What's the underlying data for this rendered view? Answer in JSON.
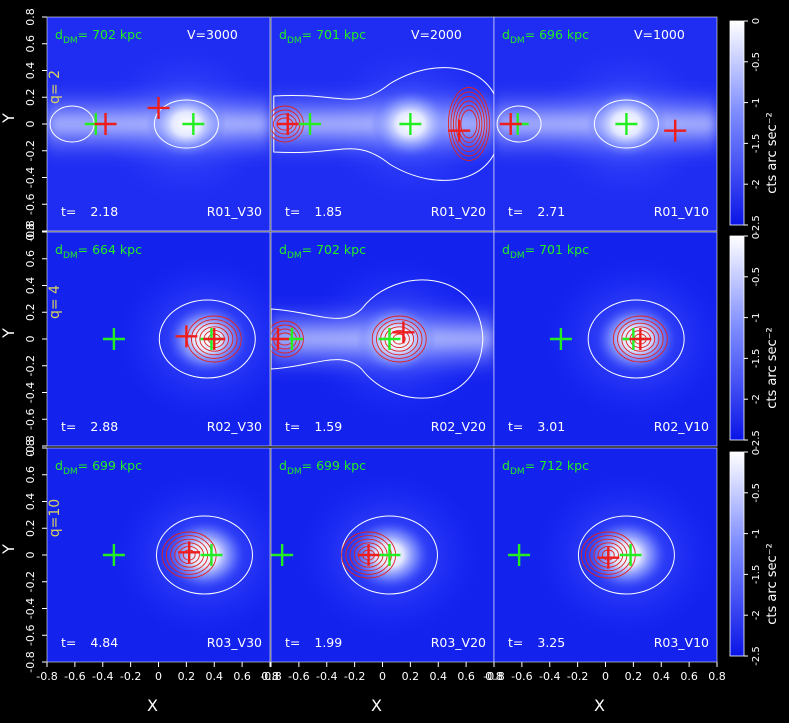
{
  "figure": {
    "y_axis_label": "Y",
    "x_axis_label": "X",
    "colorbar_label": "cts arc sec⁻²",
    "colorbar_ticks": [
      "0",
      "-0.5",
      "-1",
      "-1.5",
      "-2",
      "-2.5"
    ],
    "x_ticks": [
      "-0.8",
      "-0.6",
      "-0.4",
      "-0.2",
      "0",
      "0.2",
      "0.4",
      "0.6",
      "0.8"
    ],
    "y_ticks": [
      "0.8",
      "0.6",
      "0.4",
      "0.2",
      "0",
      "-0.2",
      "-0.4",
      "-0.6",
      "-0.8"
    ]
  },
  "rows": [
    {
      "q_label": "q= 2"
    },
    {
      "q_label": "q= 4"
    },
    {
      "q_label": "q=10"
    }
  ],
  "chart_data": {
    "type": "image-grid",
    "xlim": [
      -0.8,
      0.8
    ],
    "ylim": [
      -0.8,
      0.8
    ],
    "colorbar_range": [
      -2.5,
      0
    ],
    "colormap": [
      "#0000e0",
      "#4060ff",
      "#ffffff"
    ],
    "panels": [
      {
        "id": "R01_V30",
        "row": 0,
        "col": 0,
        "d_dm_label": "d",
        "d_dm_sub": "DM",
        "d_dm_value": "= 702 kpc",
        "velocity": "V=3000",
        "time": "2.18",
        "time_label": "t=",
        "bridge": true,
        "blob_x": 0.2,
        "contours": 0,
        "green_crosses": [
          [
            -0.45,
            0.0
          ],
          [
            0.25,
            0.0
          ]
        ],
        "red_crosses": [
          [
            -0.38,
            0.0
          ],
          [
            0.0,
            0.12
          ]
        ]
      },
      {
        "id": "R01_V20",
        "row": 0,
        "col": 1,
        "d_dm_label": "d",
        "d_dm_sub": "DM",
        "d_dm_value": "= 701 kpc",
        "velocity": "V=2000",
        "time": "1.85",
        "time_label": "t=",
        "bridge": true,
        "blob_x": 0.2,
        "contours": 1,
        "green_crosses": [
          [
            -0.52,
            0.0
          ],
          [
            0.2,
            0.0
          ]
        ],
        "red_crosses": [
          [
            -0.68,
            0.0
          ],
          [
            0.55,
            -0.05
          ]
        ]
      },
      {
        "id": "R01_V10",
        "row": 0,
        "col": 2,
        "d_dm_label": "d",
        "d_dm_sub": "DM",
        "d_dm_value": "= 696 kpc",
        "velocity": "V=1000",
        "time": "2.71",
        "time_label": "t=",
        "bridge": true,
        "blob_x": 0.15,
        "contours": 0,
        "green_crosses": [
          [
            -0.63,
            0.0
          ],
          [
            0.15,
            0.0
          ]
        ],
        "red_crosses": [
          [
            -0.68,
            0.0
          ],
          [
            0.5,
            -0.05
          ]
        ]
      },
      {
        "id": "R02_V30",
        "row": 1,
        "col": 0,
        "d_dm_label": "d",
        "d_dm_sub": "DM",
        "d_dm_value": "= 664 kpc",
        "velocity": "",
        "time": "2.88",
        "time_label": "t=",
        "bridge": false,
        "blob_x": 0.35,
        "contours": 1,
        "green_crosses": [
          [
            -0.32,
            0.0
          ],
          [
            0.38,
            0.0
          ]
        ],
        "red_crosses": [
          [
            0.2,
            0.02
          ],
          [
            0.4,
            0.0
          ]
        ]
      },
      {
        "id": "R02_V20",
        "row": 1,
        "col": 1,
        "d_dm_label": "d",
        "d_dm_sub": "DM",
        "d_dm_value": "= 702 kpc",
        "velocity": "",
        "time": "1.59",
        "time_label": "t=",
        "bridge": true,
        "blob_x": 0.1,
        "contours": 1,
        "green_crosses": [
          [
            -0.65,
            0.0
          ],
          [
            0.05,
            0.0
          ]
        ],
        "red_crosses": [
          [
            -0.75,
            0.0
          ],
          [
            0.15,
            0.05
          ]
        ]
      },
      {
        "id": "R02_V10",
        "row": 1,
        "col": 2,
        "d_dm_label": "d",
        "d_dm_sub": "DM",
        "d_dm_value": "= 701 kpc",
        "velocity": "",
        "time": "3.01",
        "time_label": "t=",
        "bridge": false,
        "blob_x": 0.22,
        "contours": 1,
        "green_crosses": [
          [
            -0.32,
            0.0
          ],
          [
            0.2,
            0.0
          ]
        ],
        "red_crosses": [
          [
            0.25,
            0.0
          ]
        ]
      },
      {
        "id": "R03_V30",
        "row": 2,
        "col": 0,
        "d_dm_label": "d",
        "d_dm_sub": "DM",
        "d_dm_value": "= 699 kpc",
        "velocity": "",
        "time": "4.84",
        "time_label": "t=",
        "bridge": false,
        "blob_x": 0.33,
        "contours": 1,
        "green_crosses": [
          [
            -0.32,
            0.0
          ],
          [
            0.38,
            0.0
          ]
        ],
        "red_crosses": [
          [
            0.22,
            0.02
          ]
        ]
      },
      {
        "id": "R03_V20",
        "row": 2,
        "col": 1,
        "d_dm_label": "d",
        "d_dm_sub": "DM",
        "d_dm_value": "= 699 kpc",
        "velocity": "",
        "time": "1.99",
        "time_label": "t=",
        "bridge": false,
        "blob_x": 0.05,
        "contours": 1,
        "green_crosses": [
          [
            -0.72,
            0.0
          ],
          [
            0.05,
            0.0
          ]
        ],
        "red_crosses": [
          [
            -0.1,
            0.0
          ]
        ]
      },
      {
        "id": "R03_V10",
        "row": 2,
        "col": 2,
        "d_dm_label": "d",
        "d_dm_sub": "DM",
        "d_dm_value": "= 712 kpc",
        "velocity": "",
        "time": "3.25",
        "time_label": "t=",
        "bridge": false,
        "blob_x": 0.15,
        "contours": 1,
        "green_crosses": [
          [
            -0.62,
            0.0
          ],
          [
            0.18,
            0.0
          ]
        ],
        "red_crosses": [
          [
            0.02,
            -0.02
          ]
        ]
      }
    ]
  }
}
